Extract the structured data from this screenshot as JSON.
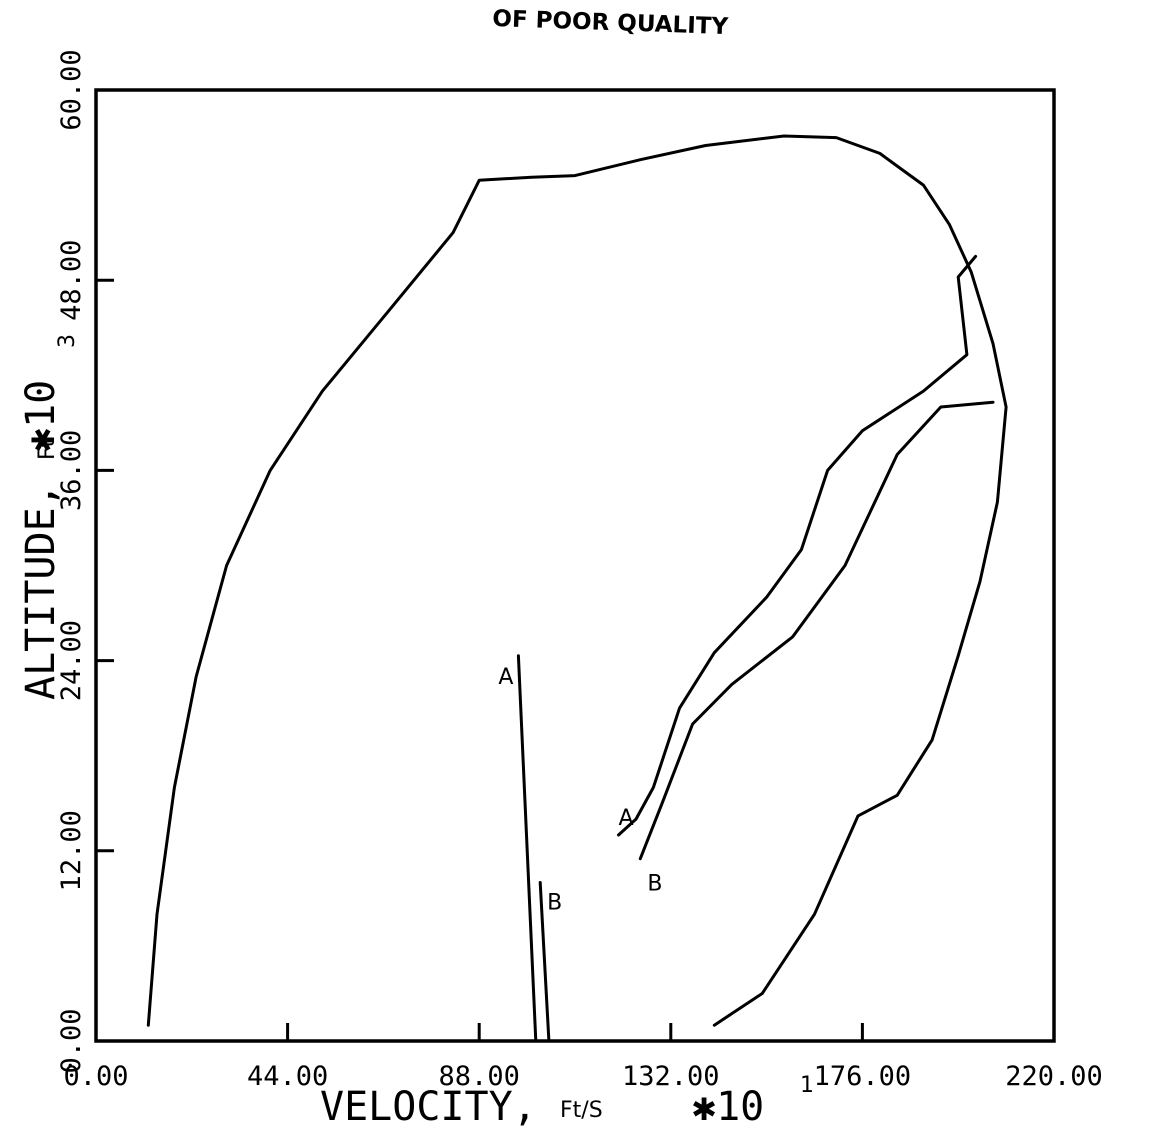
{
  "header_note": "OF POOR QUALITY",
  "chart_data": {
    "type": "line",
    "xlabel": "VELOCITY,",
    "xlabel_unit": "Ft/S",
    "x_multiplier": "✱10",
    "x_multiplier_exp": "1",
    "ylabel": "ALTITUDE,",
    "ylabel_unit": "Ft",
    "y_multiplier": "✱10",
    "y_multiplier_exp": "3",
    "xlim": [
      0,
      220
    ],
    "ylim": [
      0,
      60
    ],
    "x_ticks": [
      0,
      44,
      88,
      132,
      176,
      220
    ],
    "x_tick_labels": [
      "0.00",
      "44.00",
      "88.00",
      "132.00",
      "176.00",
      "220.00"
    ],
    "y_ticks": [
      0,
      12,
      24,
      36,
      48,
      60
    ],
    "y_tick_labels": [
      "0.00",
      "12.00",
      "24.00",
      "36.00",
      "48.00",
      "60.00"
    ],
    "grid": false,
    "series": [
      {
        "points": [
          [
            12,
            1
          ],
          [
            14,
            8
          ],
          [
            18,
            16
          ],
          [
            23,
            23
          ],
          [
            30,
            30
          ],
          [
            40,
            36
          ],
          [
            52,
            41
          ],
          [
            67,
            46
          ],
          [
            82,
            51
          ],
          [
            88,
            54.3
          ],
          [
            100,
            54.5
          ],
          [
            110,
            54.6
          ],
          [
            125,
            55.6
          ],
          [
            140,
            56.5
          ],
          [
            158,
            57.1
          ],
          [
            170,
            57
          ],
          [
            180,
            56
          ],
          [
            190,
            54
          ],
          [
            196,
            51.5
          ],
          [
            201,
            48.5
          ],
          [
            206,
            44
          ],
          [
            209,
            40
          ],
          [
            207,
            34
          ],
          [
            203,
            29
          ],
          [
            198,
            24.3
          ],
          [
            192,
            19
          ],
          [
            184,
            15.5
          ],
          [
            175,
            14.2
          ],
          [
            165,
            8
          ],
          [
            153,
            3
          ],
          [
            142,
            1
          ]
        ]
      },
      {
        "label": "A",
        "points": [
          [
            120,
            13
          ],
          [
            124,
            14
          ],
          [
            128,
            16
          ],
          [
            134,
            21
          ],
          [
            142,
            24.5
          ],
          [
            154,
            28
          ],
          [
            162,
            31
          ],
          [
            168,
            36
          ],
          [
            176,
            38.5
          ],
          [
            190,
            41
          ],
          [
            200,
            43.3
          ],
          [
            198,
            48.2
          ],
          [
            202,
            49.5
          ]
        ]
      },
      {
        "label": "B",
        "points": [
          [
            125,
            11.5
          ],
          [
            130,
            15
          ],
          [
            137,
            20
          ],
          [
            146,
            22.5
          ],
          [
            160,
            25.5
          ],
          [
            172,
            30
          ],
          [
            184,
            37
          ],
          [
            194,
            40
          ],
          [
            206,
            40.3
          ]
        ]
      },
      {
        "label": "A",
        "points": [
          [
            97,
            24.3
          ],
          [
            101,
            0
          ]
        ]
      },
      {
        "label": "B",
        "points": [
          [
            102,
            10
          ],
          [
            104,
            0
          ]
        ]
      }
    ]
  }
}
